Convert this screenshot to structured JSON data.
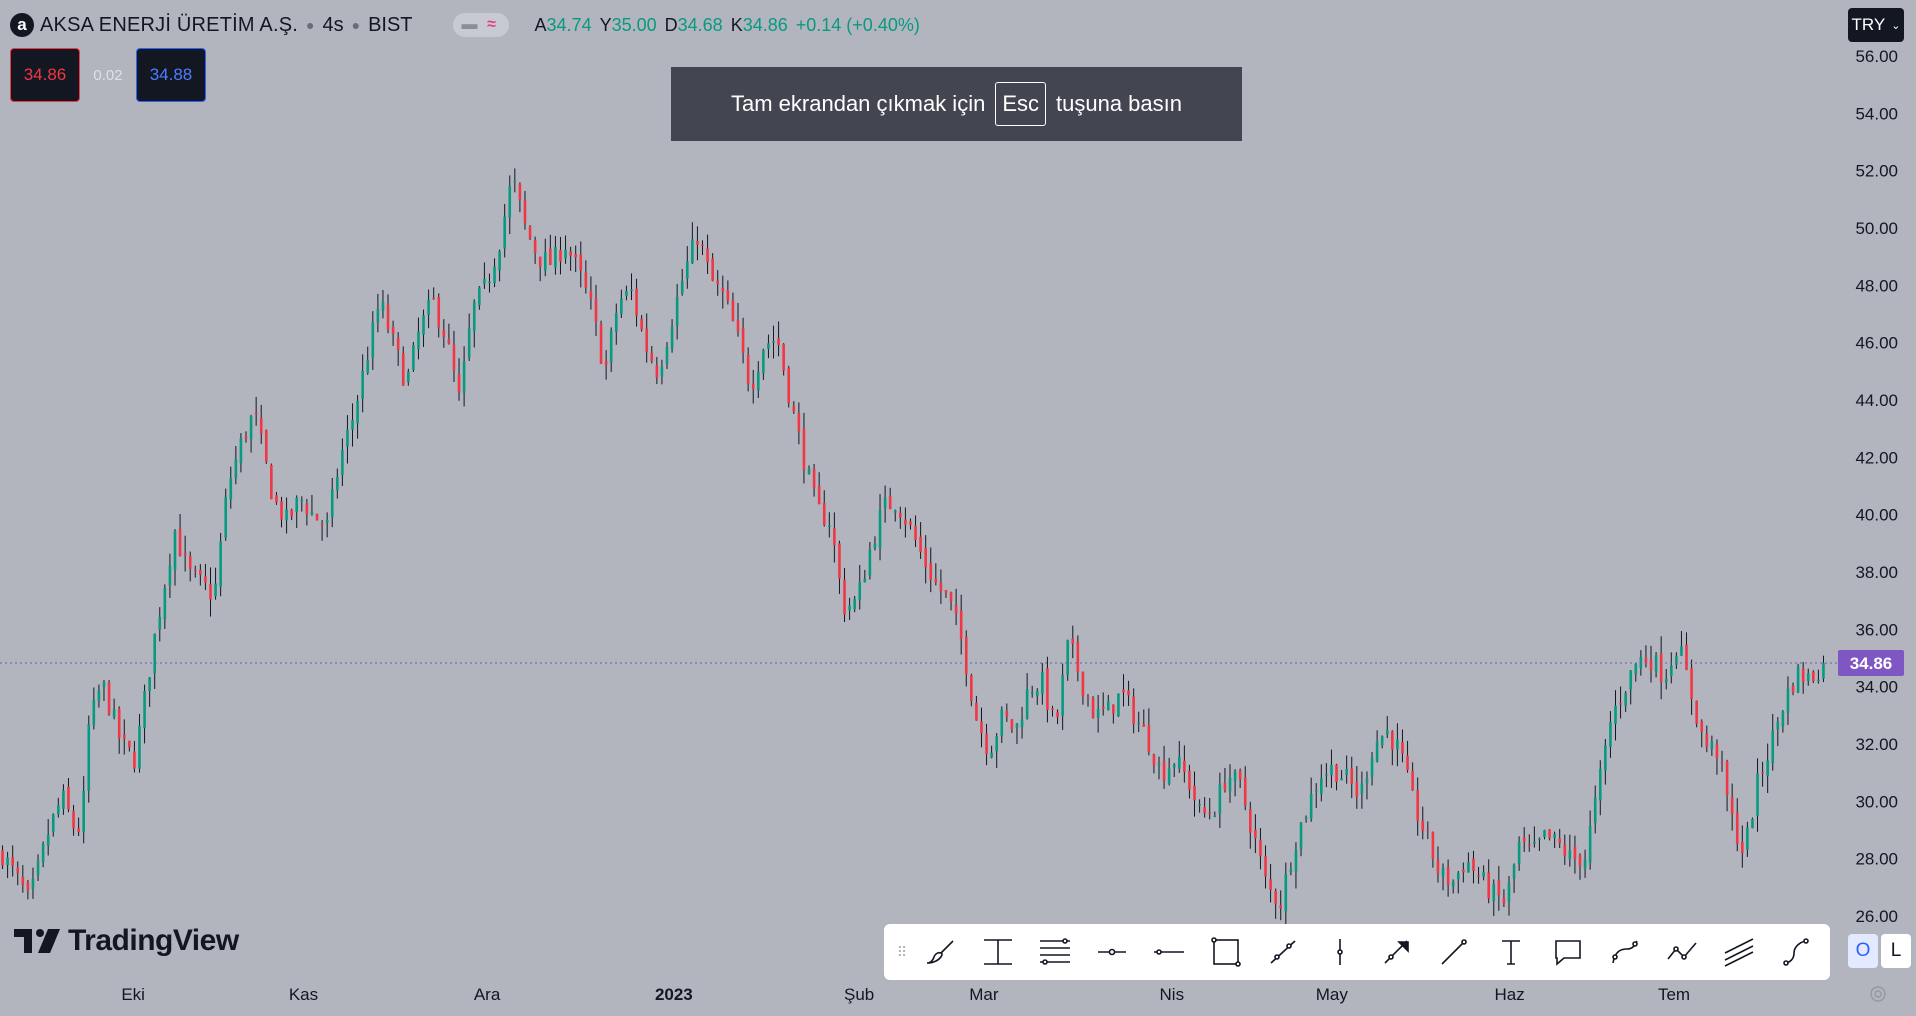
{
  "header": {
    "logo_letter": "a",
    "symbol": "AKSA ENERJİ ÜRETİM A.Ş.",
    "interval": "4s",
    "exchange": "BIST",
    "ohlc": [
      {
        "key": "A",
        "value": "34.74"
      },
      {
        "key": "Y",
        "value": "35.00"
      },
      {
        "key": "D",
        "value": "34.68"
      },
      {
        "key": "K",
        "value": "34.86"
      }
    ],
    "change": "+0.14 (+0.40%)"
  },
  "trade": {
    "sell": "34.86",
    "spread": "0.02",
    "buy": "34.88"
  },
  "toast": {
    "before": "Tam ekrandan çıkmak için",
    "key": "Esc",
    "after": "tuşuna basın"
  },
  "currency": "TRY",
  "brand": "TradingView",
  "colors": {
    "up": "#089981",
    "down": "#f23645",
    "last_price": "#7e57c2",
    "background": "#b2b5be"
  },
  "chart_data": {
    "type": "candlestick",
    "ylim": [
      25.2,
      57.4
    ],
    "y_ticks": [
      "56.00",
      "54.00",
      "52.00",
      "50.00",
      "48.00",
      "46.00",
      "44.00",
      "42.00",
      "40.00",
      "38.00",
      "36.00",
      "34.00",
      "32.00",
      "30.00",
      "28.00",
      "26.00"
    ],
    "x_labels": [
      {
        "label": "Eki",
        "bar": 0.0695
      },
      {
        "label": "Kas",
        "bar": 0.1584
      },
      {
        "label": "Ara",
        "bar": 0.2542
      },
      {
        "label": "2023",
        "bar": 0.3517
      },
      {
        "label": "Şub",
        "bar": 0.4484
      },
      {
        "label": "Mar",
        "bar": 0.5135
      },
      {
        "label": "Nis",
        "bar": 0.6116
      },
      {
        "label": "May",
        "bar": 0.6951
      },
      {
        "label": "Haz",
        "bar": 0.7879
      },
      {
        "label": "Tem",
        "bar": 0.8737
      }
    ],
    "last_price": 34.86,
    "bar_count": 360,
    "price_path": [
      [
        0,
        28.2
      ],
      [
        6,
        27.0
      ],
      [
        8,
        26.5
      ],
      [
        14,
        29.0
      ],
      [
        18,
        30.2
      ],
      [
        22,
        29.0
      ],
      [
        24,
        29.2
      ],
      [
        26,
        32.6
      ],
      [
        30,
        34.2
      ],
      [
        36,
        32.0
      ],
      [
        40,
        31.5
      ],
      [
        46,
        35.8
      ],
      [
        52,
        39.5
      ],
      [
        56,
        38.0
      ],
      [
        60,
        37.6
      ],
      [
        64,
        37.2
      ],
      [
        68,
        41.0
      ],
      [
        72,
        42.5
      ],
      [
        76,
        43.6
      ],
      [
        82,
        40.5
      ],
      [
        86,
        39.8
      ],
      [
        90,
        40.6
      ],
      [
        94,
        40.0
      ],
      [
        98,
        39.6
      ],
      [
        102,
        42.0
      ],
      [
        106,
        43.5
      ],
      [
        110,
        45.5
      ],
      [
        114,
        47.5
      ],
      [
        118,
        46.0
      ],
      [
        122,
        44.6
      ],
      [
        126,
        46.5
      ],
      [
        130,
        47.5
      ],
      [
        134,
        46.2
      ],
      [
        138,
        44.0
      ],
      [
        142,
        47.2
      ],
      [
        146,
        48.0
      ],
      [
        150,
        49.5
      ],
      [
        154,
        51.8
      ],
      [
        158,
        50.0
      ],
      [
        162,
        49.0
      ],
      [
        166,
        48.8
      ],
      [
        170,
        49.5
      ],
      [
        174,
        48.5
      ],
      [
        178,
        47.2
      ],
      [
        182,
        45.0
      ],
      [
        186,
        47.5
      ],
      [
        190,
        47.8
      ],
      [
        194,
        46.0
      ],
      [
        198,
        45.0
      ],
      [
        202,
        46.8
      ],
      [
        206,
        48.5
      ],
      [
        210,
        49.8
      ],
      [
        214,
        48.2
      ],
      [
        218,
        47.6
      ],
      [
        222,
        46.2
      ],
      [
        226,
        44.5
      ],
      [
        230,
        46.0
      ],
      [
        234,
        46.2
      ],
      [
        238,
        44.0
      ],
      [
        242,
        42.0
      ],
      [
        246,
        40.2
      ],
      [
        250,
        39.8
      ],
      [
        254,
        36.8
      ],
      [
        258,
        37.0
      ],
      [
        262,
        38.8
      ],
      [
        266,
        40.3
      ],
      [
        270,
        40.5
      ],
      [
        274,
        39.6
      ],
      [
        278,
        38.5
      ],
      [
        282,
        37.6
      ],
      [
        286,
        37.0
      ],
      [
        290,
        35.5
      ],
      [
        294,
        33.0
      ],
      [
        298,
        31.8
      ],
      [
        302,
        33.0
      ],
      [
        306,
        32.5
      ],
      [
        310,
        34.0
      ],
      [
        314,
        34.2
      ],
      [
        318,
        32.5
      ],
      [
        322,
        35.6
      ],
      [
        326,
        34.2
      ],
      [
        330,
        33.0
      ],
      [
        334,
        33.2
      ],
      [
        338,
        33.8
      ],
      [
        342,
        33.0
      ],
      [
        346,
        32.2
      ],
      [
        350,
        31.0
      ],
      [
        354,
        31.5
      ],
      [
        358,
        30.8
      ],
      [
        362,
        29.5
      ],
      [
        366,
        29.8
      ],
      [
        370,
        31.0
      ],
      [
        374,
        30.5
      ],
      [
        378,
        28.8
      ],
      [
        382,
        27.0
      ],
      [
        386,
        26.5
      ],
      [
        390,
        28.5
      ],
      [
        394,
        29.8
      ],
      [
        398,
        31.0
      ],
      [
        402,
        31.2
      ],
      [
        406,
        30.8
      ],
      [
        410,
        30.2
      ],
      [
        414,
        32.0
      ],
      [
        418,
        32.5
      ],
      [
        422,
        31.8
      ],
      [
        426,
        30.0
      ],
      [
        430,
        28.8
      ],
      [
        434,
        27.5
      ],
      [
        438,
        27.2
      ],
      [
        442,
        28.0
      ],
      [
        446,
        27.4
      ],
      [
        450,
        26.8
      ],
      [
        454,
        26.5
      ],
      [
        458,
        28.5
      ],
      [
        462,
        28.2
      ],
      [
        466,
        28.8
      ],
      [
        470,
        28.5
      ],
      [
        474,
        28.0
      ],
      [
        478,
        28.1
      ],
      [
        482,
        30.5
      ],
      [
        486,
        33.0
      ],
      [
        490,
        34.0
      ],
      [
        494,
        35.0
      ],
      [
        498,
        35.0
      ],
      [
        502,
        34.4
      ],
      [
        506,
        35.6
      ],
      [
        510,
        33.8
      ],
      [
        514,
        32.0
      ],
      [
        518,
        31.8
      ],
      [
        522,
        29.5
      ],
      [
        526,
        28.2
      ],
      [
        530,
        30.6
      ],
      [
        534,
        32.0
      ],
      [
        538,
        33.5
      ],
      [
        542,
        34.5
      ],
      [
        546,
        34.3
      ],
      [
        550,
        34.86
      ]
    ]
  },
  "drawing_toolbar": {
    "tools": [
      "brush-icon",
      "cross-line-icon",
      "fib-retracement-icon",
      "horizontal-ray-icon",
      "horizontal-line-icon",
      "rectangle-icon",
      "trend-line-icon",
      "vertical-line-icon",
      "arrow-icon",
      "extended-line-icon",
      "text-icon",
      "callout-icon",
      "path-icon",
      "polyline-icon",
      "parallel-channel-icon",
      "curve-icon"
    ],
    "o_label": "O",
    "l_label": "L"
  }
}
